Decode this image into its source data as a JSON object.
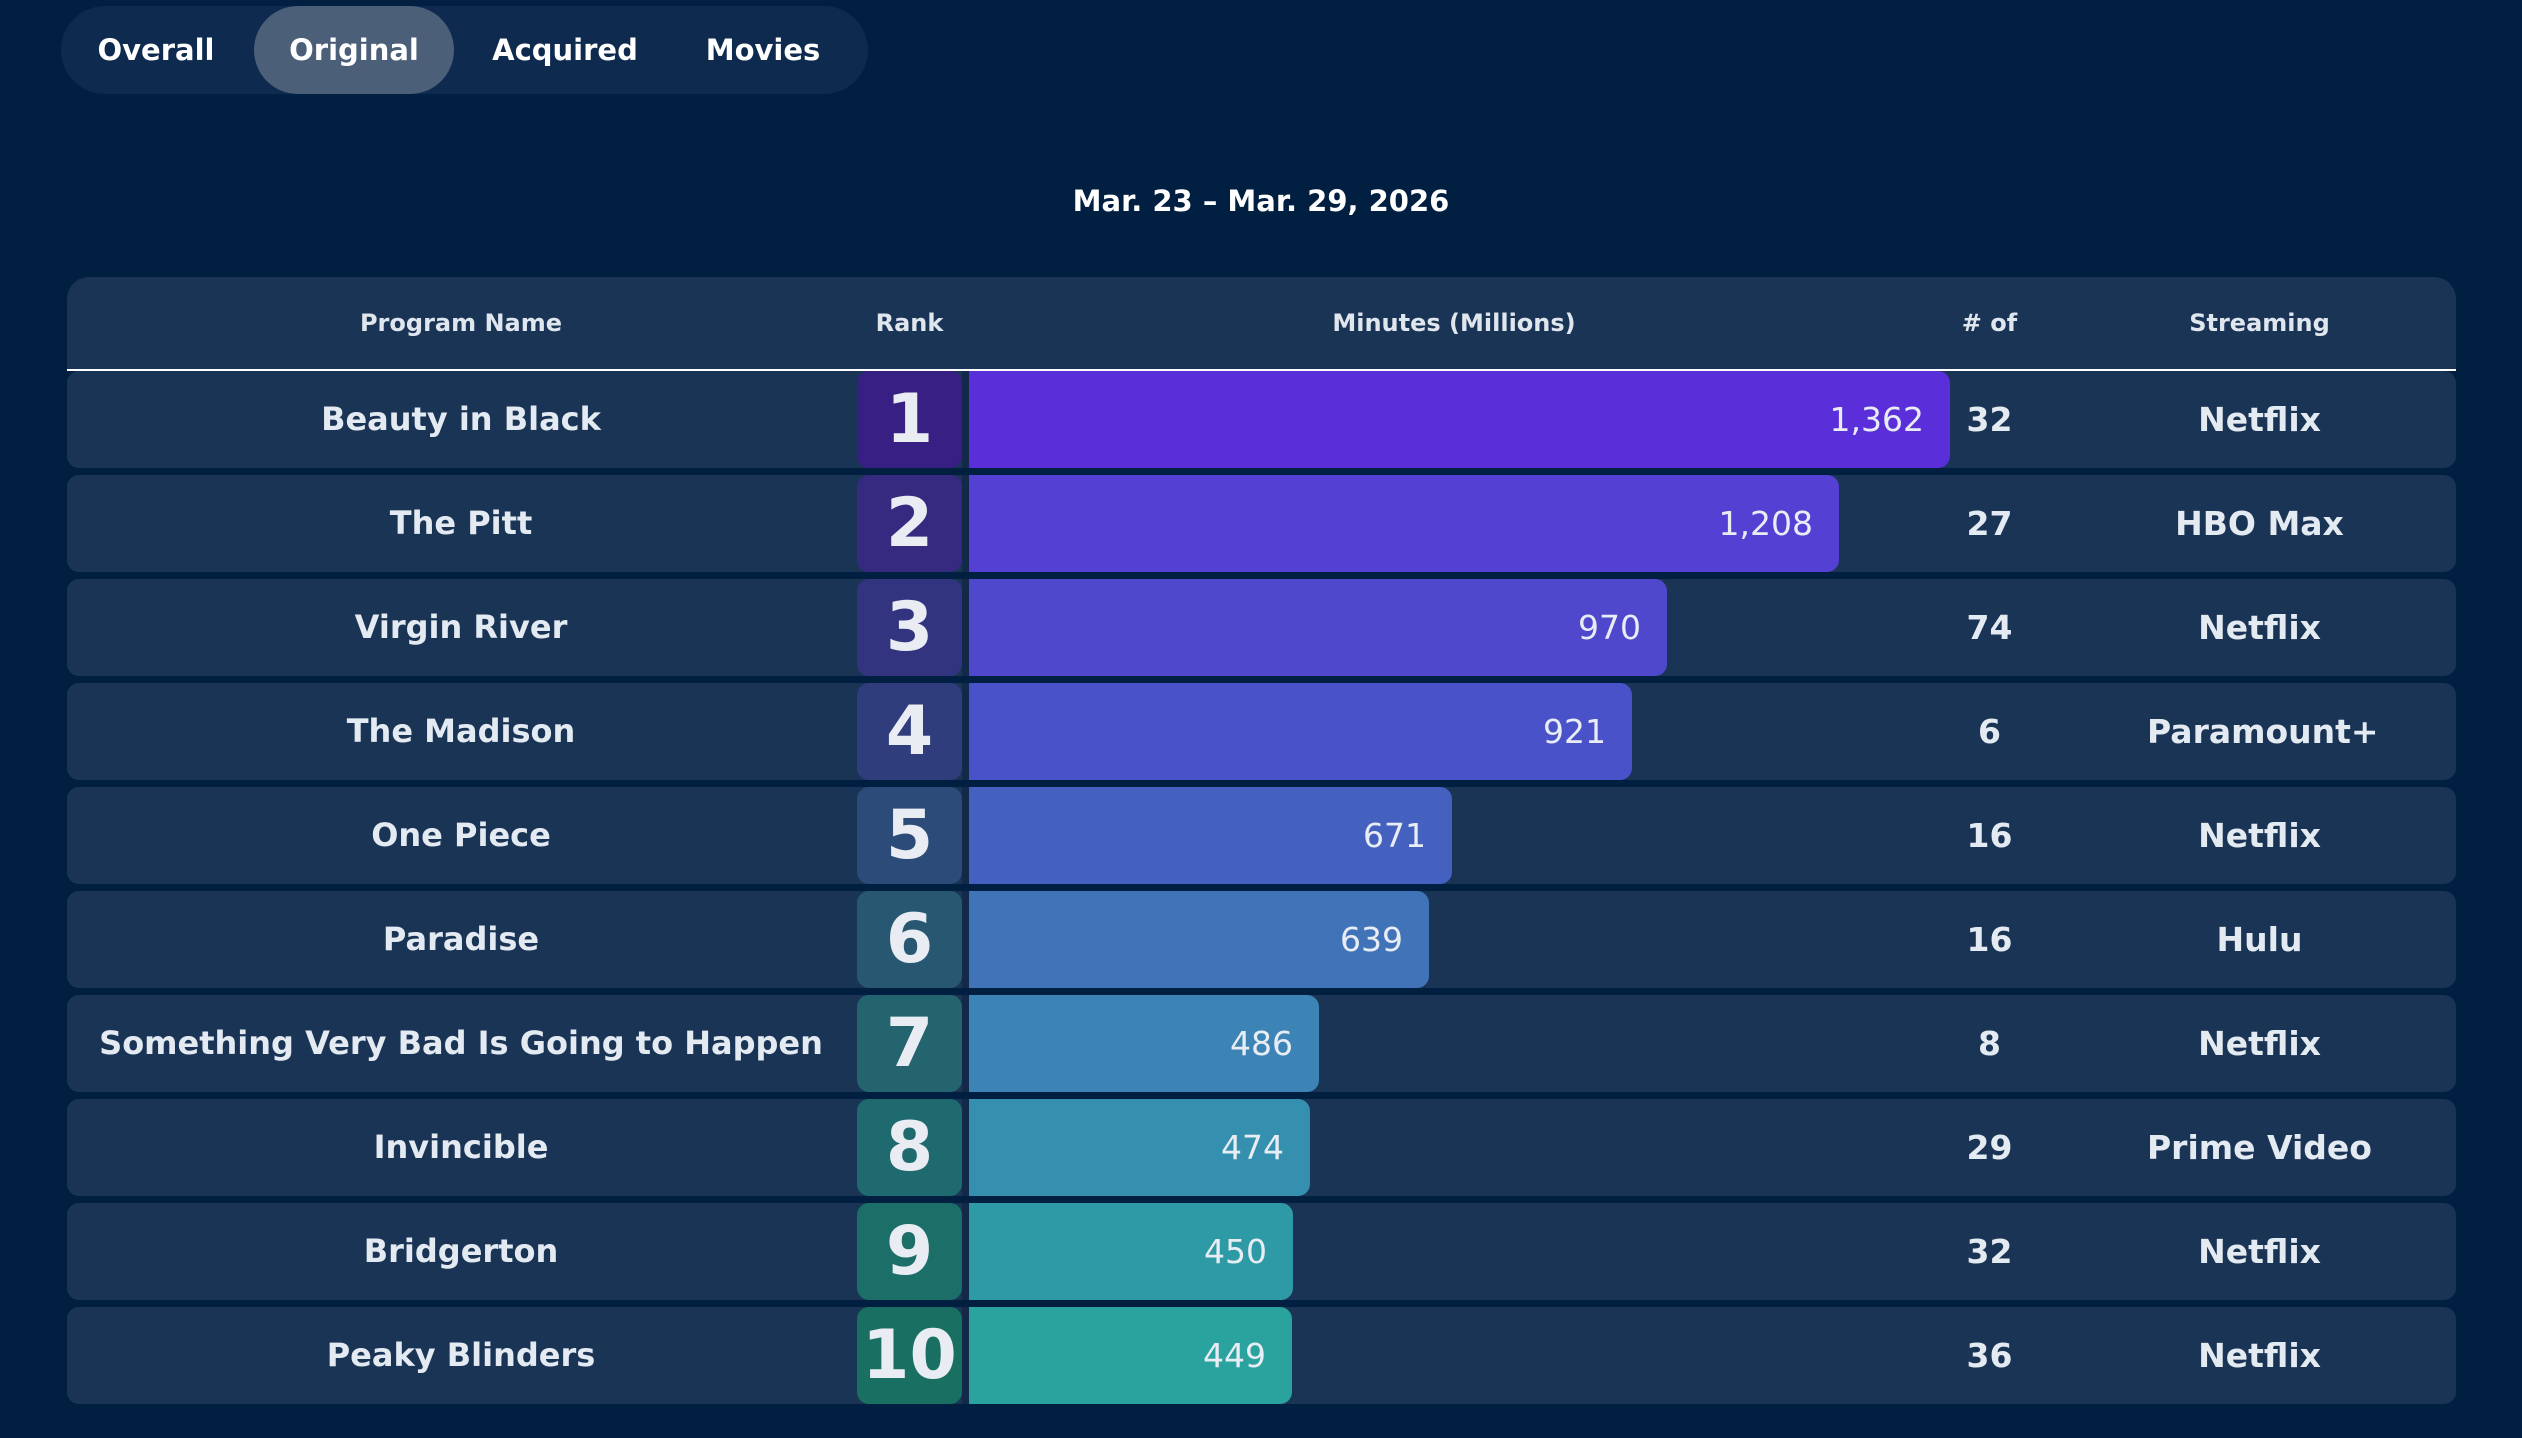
{
  "tabs": [
    {
      "label": "Overall",
      "active": false
    },
    {
      "label": "Original",
      "active": true
    },
    {
      "label": "Acquired",
      "active": false
    },
    {
      "label": "Movies",
      "active": false
    }
  ],
  "date_range": "Mar. 23 – Mar. 29, 2026",
  "colors": {
    "background": "#001f41",
    "row": "#1a3456",
    "bar_gradient": [
      "#5a2ed8",
      "#5540d4",
      "#5048cc",
      "#4a52c9",
      "#4561bf",
      "#4173b9",
      "#3c84b6",
      "#3590b0",
      "#2e9aa6",
      "#2aa39f"
    ],
    "rank_gradient": [
      "#371f83",
      "#352a80",
      "#333480",
      "#303d7c",
      "#2c4b78",
      "#285772",
      "#23646f",
      "#1e6a6e",
      "#1c6e68",
      "#1a6f63"
    ]
  },
  "chart_data": {
    "type": "bar",
    "orientation": "horizontal",
    "columns": [
      "Program Name",
      "Rank",
      "Minutes (Millions)",
      "# of Episodes",
      "Streaming Provider(s)"
    ],
    "xlim": [
      0,
      1800
    ],
    "rows": [
      {
        "name": "Beauty in Black",
        "rank": 1,
        "minutes": 1362,
        "minutes_label": "1,362",
        "episodes": 32,
        "provider": "Netflix"
      },
      {
        "name": "The Pitt",
        "rank": 2,
        "minutes": 1208,
        "minutes_label": "1,208",
        "episodes": 27,
        "provider": "HBO Max"
      },
      {
        "name": "Virgin River",
        "rank": 3,
        "minutes": 970,
        "minutes_label": "970",
        "episodes": 74,
        "provider": "Netflix"
      },
      {
        "name": "The Madison",
        "rank": 4,
        "minutes": 921,
        "minutes_label": "921",
        "episodes": 6,
        "provider": "Paramount+"
      },
      {
        "name": "One Piece",
        "rank": 5,
        "minutes": 671,
        "minutes_label": "671",
        "episodes": 16,
        "provider": "Netflix"
      },
      {
        "name": "Paradise",
        "rank": 6,
        "minutes": 639,
        "minutes_label": "639",
        "episodes": 16,
        "provider": "Hulu"
      },
      {
        "name": "Something Very Bad Is Going to Happen",
        "rank": 7,
        "minutes": 486,
        "minutes_label": "486",
        "episodes": 8,
        "provider": "Netflix"
      },
      {
        "name": "Invincible",
        "rank": 8,
        "minutes": 474,
        "minutes_label": "474",
        "episodes": 29,
        "provider": "Prime Video"
      },
      {
        "name": "Bridgerton",
        "rank": 9,
        "minutes": 450,
        "minutes_label": "450",
        "episodes": 32,
        "provider": "Netflix"
      },
      {
        "name": "Peaky Blinders",
        "rank": 10,
        "minutes": 449,
        "minutes_label": "449",
        "episodes": 36,
        "provider": "Netflix"
      }
    ]
  }
}
